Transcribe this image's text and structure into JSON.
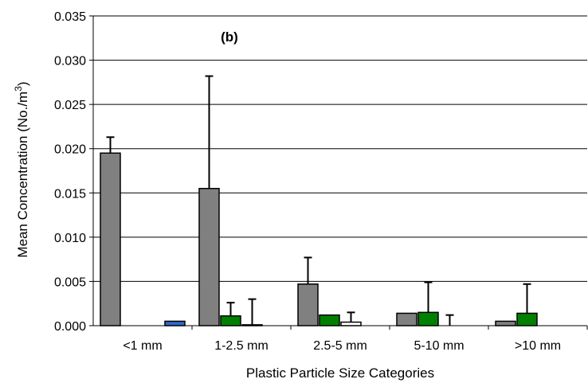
{
  "chart_data": {
    "type": "bar",
    "title": "",
    "annotation": "(b)",
    "xlabel": "Plastic Particle Size Categories",
    "ylabel": "Mean Concentration (No./m",
    "ylabel_superscript": "3",
    "ylabel_suffix": ")",
    "ylim": [
      0,
      0.035
    ],
    "yticks": [
      "0.000",
      "0.005",
      "0.010",
      "0.015",
      "0.020",
      "0.025",
      "0.030",
      "0.035"
    ],
    "grid": true,
    "legend": "none",
    "categories": [
      "<1 mm",
      "1-2.5 mm",
      "2.5-5 mm",
      "5-10 mm",
      ">10 mm"
    ],
    "series": [
      {
        "color": "#808080",
        "values": [
          0.0195,
          0.0155,
          0.0047,
          0.0014,
          0.0005
        ],
        "error": [
          0.0018,
          0.0127,
          0.003,
          0.0,
          0.0
        ]
      },
      {
        "color": "#008000",
        "values": [
          0.0,
          0.0011,
          0.0012,
          0.0015,
          0.0014
        ],
        "error": [
          0.0,
          0.0015,
          0.0,
          0.0034,
          0.0033
        ]
      },
      {
        "color": "#ffffff",
        "values": [
          0.0,
          0.0001,
          0.0004,
          0.0,
          0.0
        ],
        "error": [
          0.0,
          0.0029,
          0.0011,
          0.0012,
          0.0
        ]
      },
      {
        "color": "#3366cc",
        "values": [
          0.0005,
          0.0,
          0.0,
          0.0,
          0.0
        ],
        "error": [
          0.0,
          0.0,
          0.0,
          0.0,
          0.0
        ]
      }
    ]
  }
}
